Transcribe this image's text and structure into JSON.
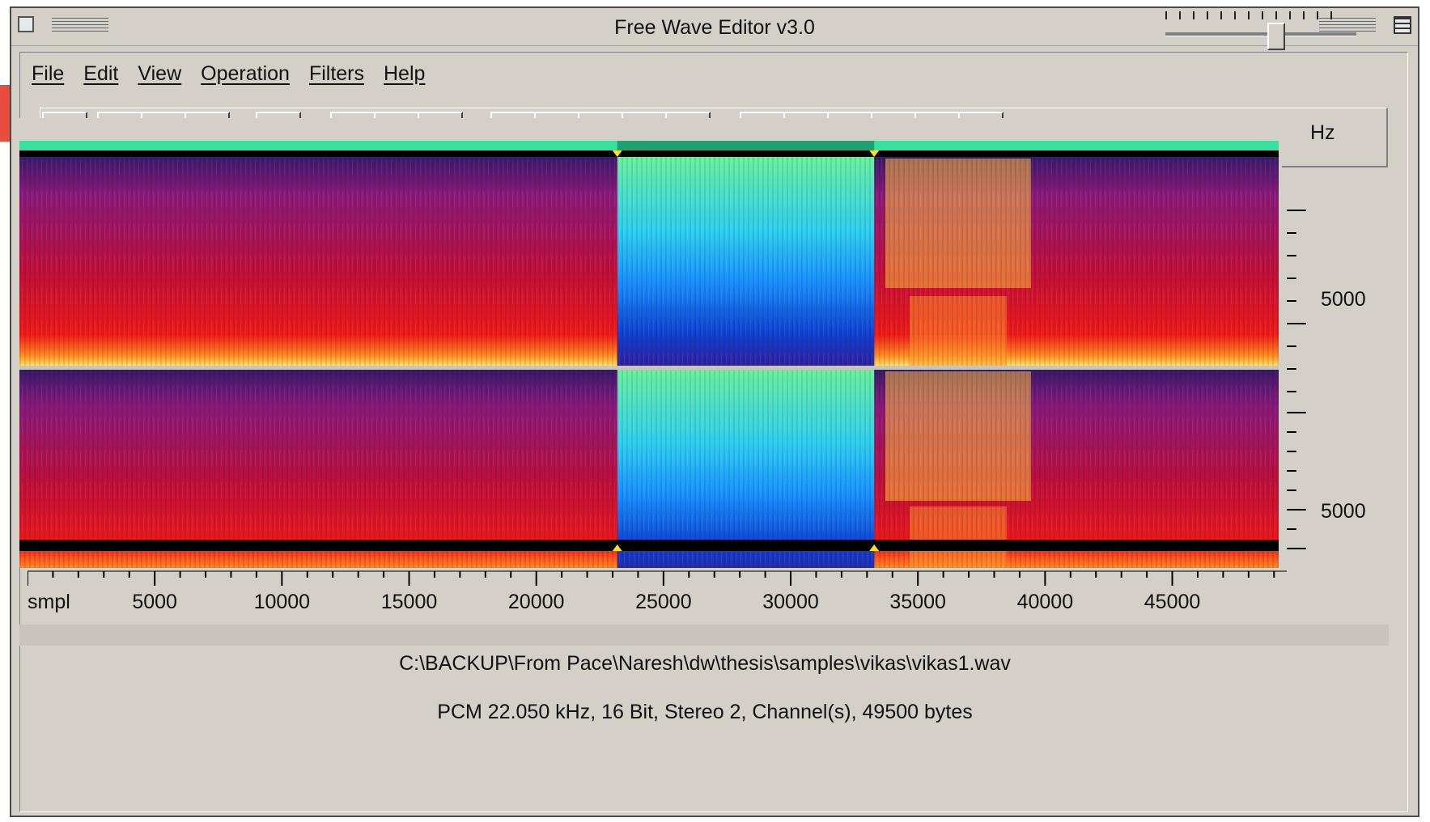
{
  "window": {
    "title": "Free Wave Editor v3.0"
  },
  "menu": {
    "items": [
      "File",
      "Edit",
      "View",
      "Operation",
      "Filters",
      "Help"
    ]
  },
  "toolbar": {
    "buttons": [
      {
        "icon": "new-file-icon"
      },
      {
        "icon": "open-folder-icon"
      },
      {
        "icon": "save-disk-icon"
      },
      {
        "icon": "close-x-icon"
      },
      {
        "icon": "properties-icon"
      },
      {
        "icon": "copy-icon"
      },
      {
        "icon": "cut-scissors-icon"
      },
      {
        "icon": "paste-clipboard-icon"
      },
      {
        "icon": "undo-icon"
      },
      {
        "icon": "redo-icon"
      },
      {
        "icon": "zoom-in-icon"
      },
      {
        "icon": "zoom-out-icon"
      },
      {
        "icon": "zoom-fit-icon"
      },
      {
        "icon": "play-icon"
      },
      {
        "icon": "loop-icon"
      },
      {
        "icon": "record-icon"
      },
      {
        "icon": "pause-icon"
      },
      {
        "icon": "play-selection-icon"
      },
      {
        "icon": "stop-icon"
      }
    ],
    "volume_slider_level": 0.58
  },
  "editor": {
    "frequency_unit": "Hz",
    "frequency_tick_labels": [
      "5000",
      "5000"
    ],
    "sample_axis_labels": [
      "smpl",
      "5000",
      "10000",
      "15000",
      "20000",
      "25000",
      "30000",
      "35000",
      "40000",
      "45000"
    ],
    "selection_samples": [
      23500,
      33600
    ],
    "total_samples": 49500
  },
  "status": {
    "file_path": "C:\\BACKUP\\From Pace\\Naresh\\dw\\thesis\\samples\\vikas\\vikas1.wav",
    "file_info": "PCM 22.050 kHz, 16 Bit, Stereo 2, Channel(s), 49500 bytes"
  }
}
